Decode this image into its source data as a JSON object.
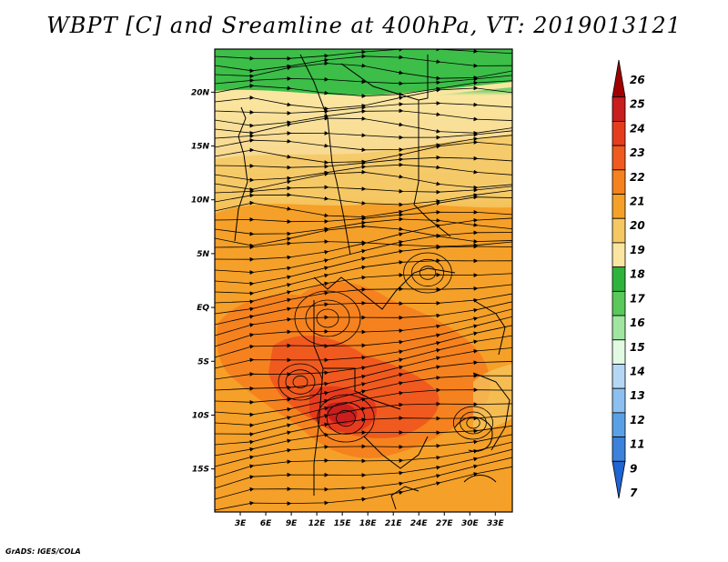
{
  "title": "WBPT [C] and Sreamline at 400hPa, VT: 2019013121",
  "credit": "GrADS: IGES/COLA",
  "map": {
    "lon_range": [
      0,
      35
    ],
    "lat_range": [
      -19,
      24
    ],
    "lon_ticks": [
      {
        "value": 3,
        "label": "3E"
      },
      {
        "value": 6,
        "label": "6E"
      },
      {
        "value": 9,
        "label": "9E"
      },
      {
        "value": 12,
        "label": "12E"
      },
      {
        "value": 15,
        "label": "15E"
      },
      {
        "value": 18,
        "label": "18E"
      },
      {
        "value": 21,
        "label": "21E"
      },
      {
        "value": 24,
        "label": "24E"
      },
      {
        "value": 27,
        "label": "27E"
      },
      {
        "value": 30,
        "label": "30E"
      },
      {
        "value": 33,
        "label": "33E"
      }
    ],
    "lat_ticks": [
      {
        "value": 20,
        "label": "20N"
      },
      {
        "value": 15,
        "label": "15N"
      },
      {
        "value": 10,
        "label": "10N"
      },
      {
        "value": 5,
        "label": "5N"
      },
      {
        "value": 0,
        "label": "EQ"
      },
      {
        "value": -5,
        "label": "5S"
      },
      {
        "value": -10,
        "label": "10S"
      },
      {
        "value": -15,
        "label": "15S"
      }
    ]
  },
  "colorbar": {
    "labels": [
      "26",
      "25",
      "24",
      "23",
      "22",
      "21",
      "20",
      "19",
      "18",
      "17",
      "16",
      "15",
      "14",
      "13",
      "12",
      "11",
      "9",
      "7"
    ],
    "colors": [
      "#a00000",
      "#c81e1e",
      "#e63c1e",
      "#f05a1e",
      "#f5821e",
      "#f5a028",
      "#f5c864",
      "#fae6a0",
      "#2eb43c",
      "#5ac85a",
      "#a0e6a0",
      "#e1fae1",
      "#b4d7f5",
      "#8cc0f0",
      "#5aa0e6",
      "#3c82dc",
      "#1e64d2"
    ]
  }
}
